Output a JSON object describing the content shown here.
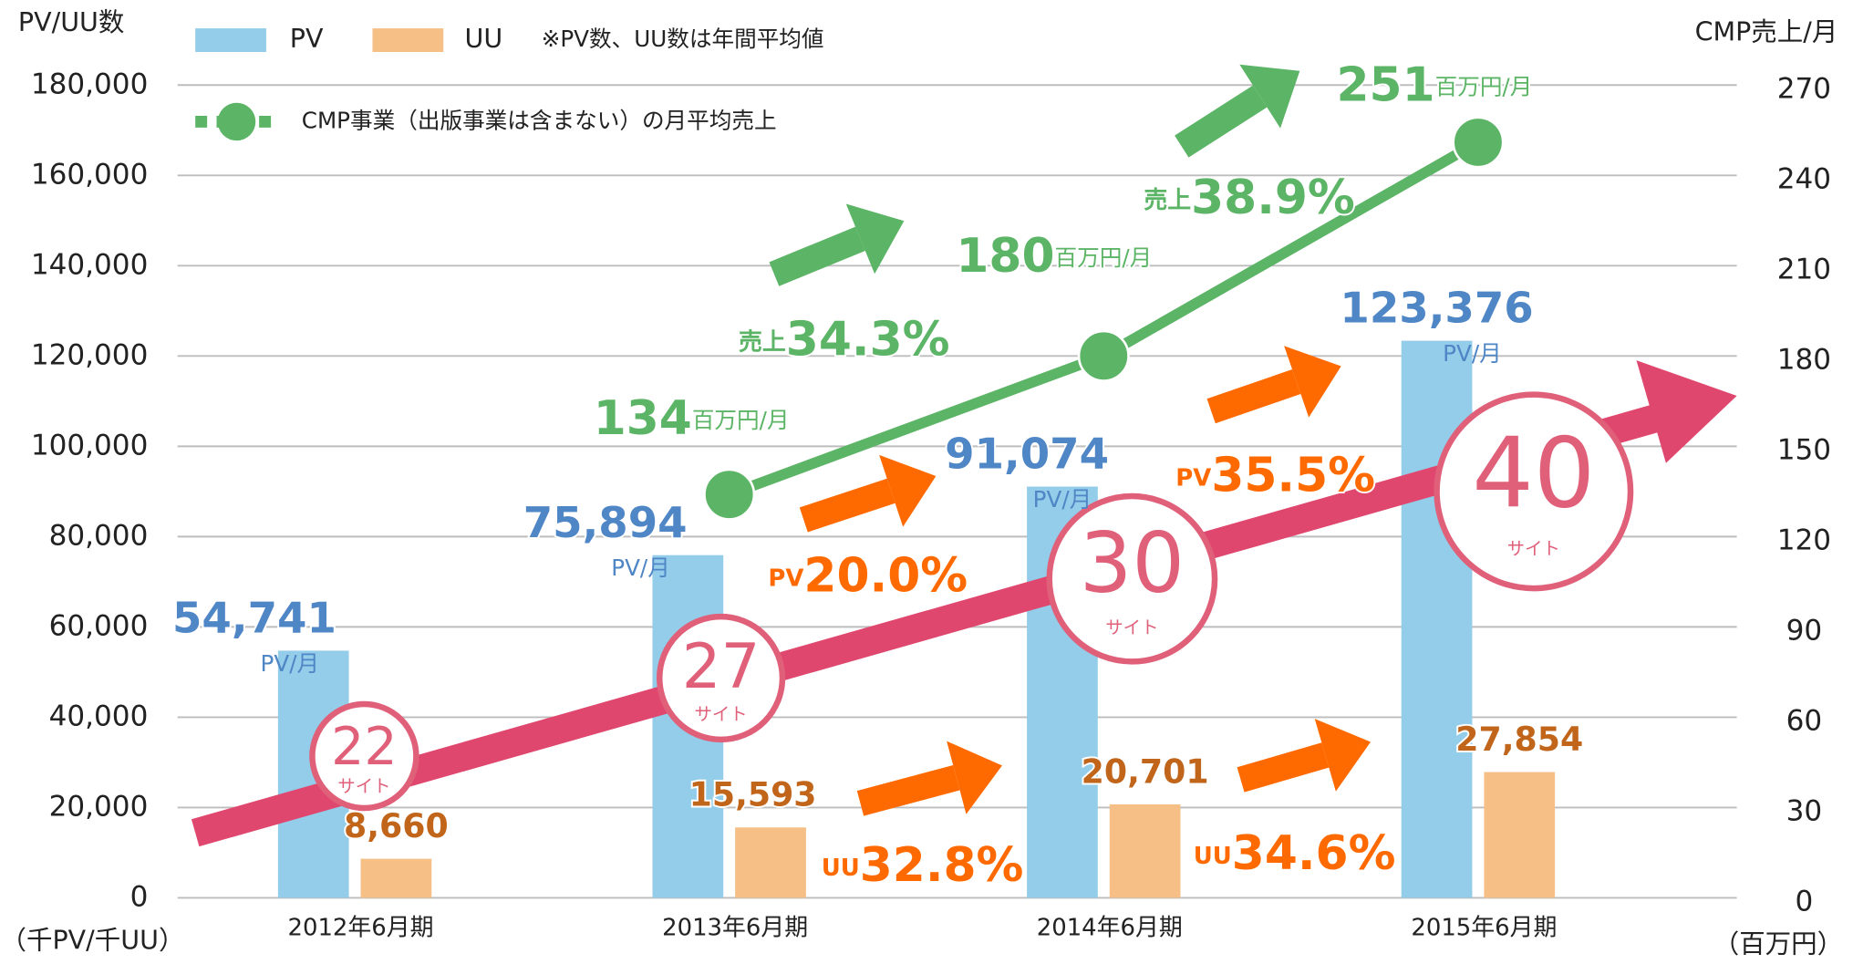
{
  "chart_data": {
    "type": "bar",
    "categories": [
      "2012年6月期",
      "2013年6月期",
      "2014年6月期",
      "2015年6月期"
    ],
    "series": [
      {
        "name": "PV",
        "color": "#93cdea",
        "values": [
          54741,
          75894,
          91074,
          123376
        ],
        "value_labels": [
          "54,741",
          "75,894",
          "91,074",
          "123,376"
        ],
        "unit_label": "PV/月"
      },
      {
        "name": "UU",
        "color": "#f5bf85",
        "values": [
          8660,
          15593,
          20701,
          27854
        ],
        "value_labels": [
          "8,660",
          "15,593",
          "20,701",
          "27,854"
        ]
      },
      {
        "name": "CMP事業（出版事業は含まない）の月平均売上",
        "type": "line",
        "axis": "y2",
        "color": "#5cb466",
        "values": [
          null,
          134,
          180,
          251
        ],
        "unit_label": "百万円/月"
      }
    ],
    "legend_note": "※PV数、UU数は年間平均値",
    "y_label": "PV/UU数",
    "y_unit": "（千PV/千UU）",
    "y2_label": "CMP売上/月",
    "y2_unit": "（百万円）",
    "ylim": [
      0,
      180000
    ],
    "yticks": [
      0,
      {
        "value": 20000,
        "label": "20,000"
      },
      {
        "value": 40000,
        "label": "40,000"
      },
      {
        "value": 60000,
        "label": "60,000"
      },
      {
        "value": 80000,
        "label": "80,000"
      },
      {
        "value": 100000,
        "label": "100,000"
      },
      {
        "value": 120000,
        "label": "120,000"
      },
      {
        "value": 140000,
        "label": "140,000"
      },
      {
        "value": 160000,
        "label": "160,000"
      },
      {
        "value": 180000,
        "label": "180,000"
      }
    ],
    "y2lim": [
      0,
      270
    ],
    "y2ticks": [
      0,
      30,
      60,
      90,
      120,
      150,
      180,
      210,
      240,
      270
    ],
    "grid": true,
    "sites": [
      {
        "count": 22,
        "label": "サイト"
      },
      {
        "count": 27,
        "label": "サイト"
      },
      {
        "count": 30,
        "label": "サイト"
      },
      {
        "count": 40,
        "label": "サイト"
      }
    ],
    "growth": [
      {
        "prefix": "売上",
        "text": "34.3%"
      },
      {
        "prefix": "売上",
        "text": "38.9%"
      },
      {
        "prefix": "PV",
        "text": "20.0%"
      },
      {
        "prefix": "PV",
        "text": "35.5%"
      },
      {
        "prefix": "UU",
        "text": "32.8%"
      },
      {
        "prefix": "UU",
        "text": "34.6%"
      }
    ]
  }
}
